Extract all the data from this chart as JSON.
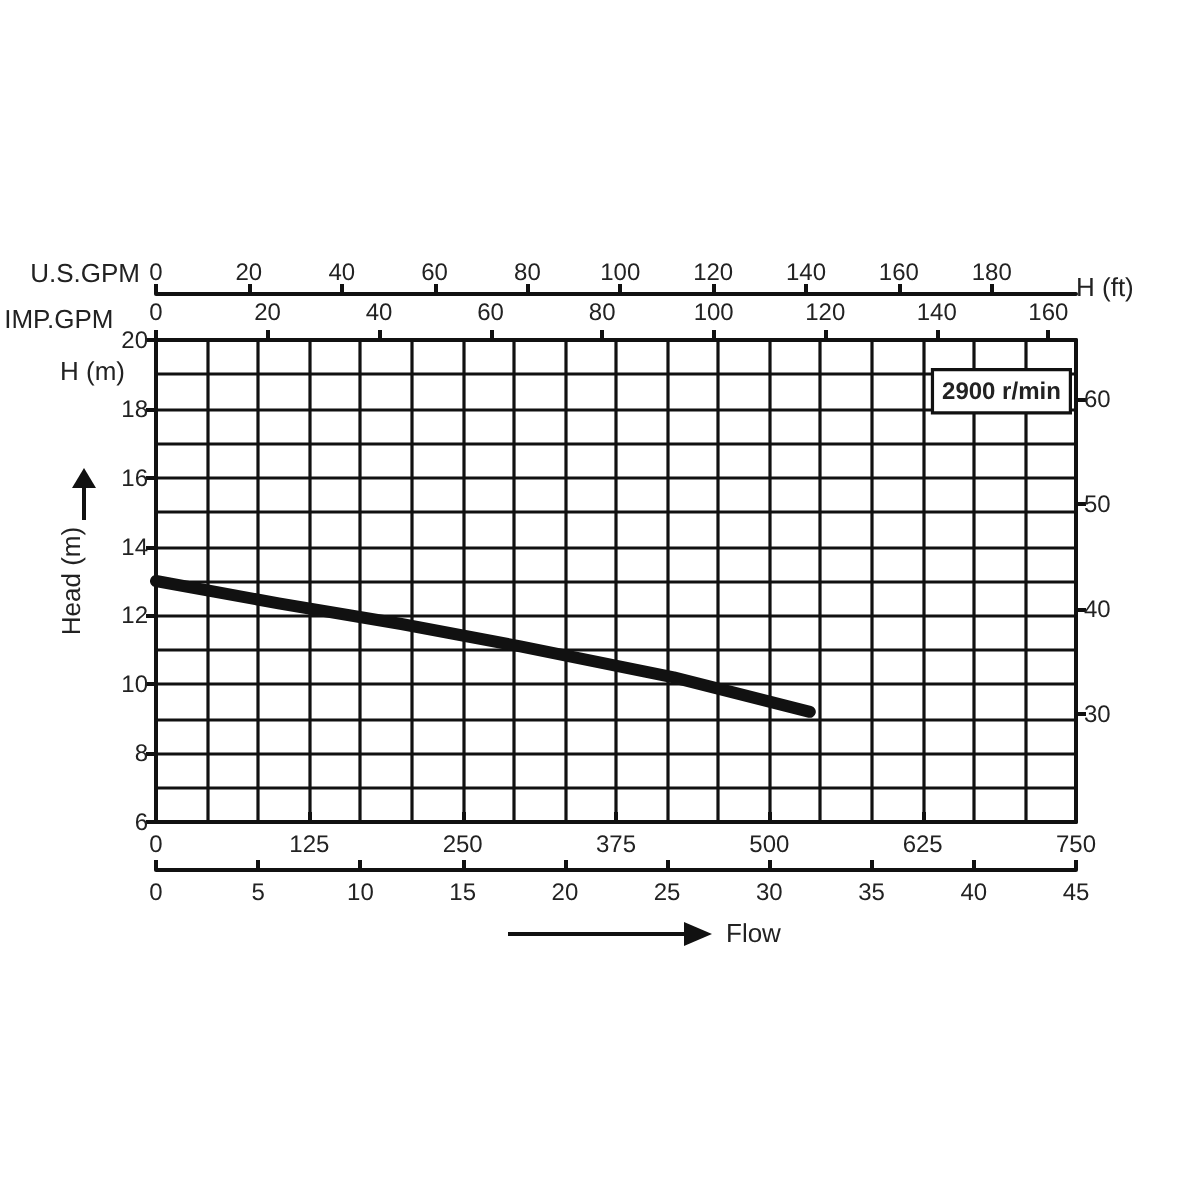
{
  "chart_data": {
    "type": "line",
    "xlabel": "Flow",
    "ylabel": "Head (m)",
    "y2label": "H (ft)",
    "annotations": [
      "H (m)",
      "2900 r/min",
      "U.S.GPM",
      "0",
      "20",
      "40",
      "60",
      "80",
      "100",
      "120",
      "140",
      "160",
      "180",
      "IMP.GPM",
      "0",
      "20",
      "40",
      "60",
      "80",
      "100",
      "120",
      "140",
      "160"
    ],
    "x": [
      0,
      100,
      200,
      297,
      422,
      533
    ],
    "series": [
      {
        "color": "#111111",
        "values": [
          13.0,
          12.35,
          11.75,
          11.1,
          10.2,
          9.2
        ]
      }
    ],
    "xlim": [
      0,
      750
    ],
    "xticks": [
      0,
      125,
      250,
      375,
      500,
      625,
      750
    ],
    "x2lim": [
      0,
      45
    ],
    "x2ticks": [
      0,
      5,
      10,
      15,
      20,
      25,
      30,
      35,
      40,
      45
    ],
    "ylim": [
      6,
      20
    ],
    "yticks": [
      6,
      8,
      10,
      12,
      14,
      16,
      18,
      20
    ],
    "y2lim": [
      19.7,
      65.6
    ],
    "y2ticks": [
      30,
      40,
      50,
      60
    ],
    "grid": true,
    "marker": "none",
    "line_style": "solid"
  }
}
